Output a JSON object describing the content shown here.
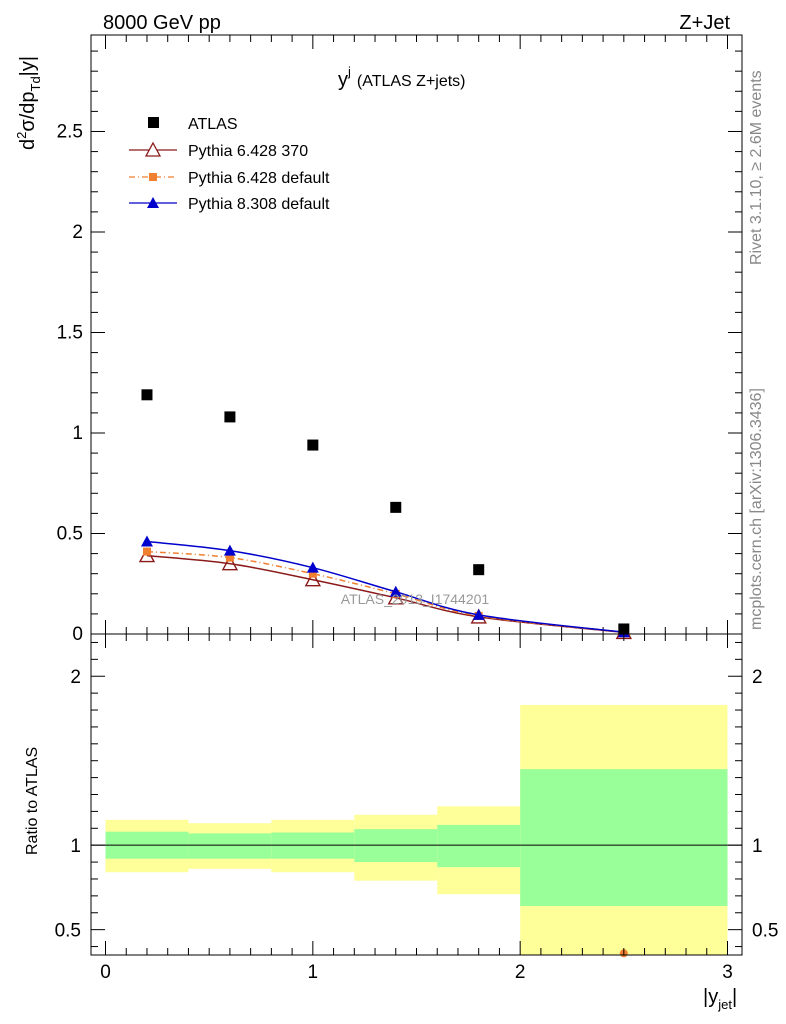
{
  "header": {
    "left_label": "8000 GeV pp",
    "right_label": "Z+Jet"
  },
  "side_labels": {
    "rivet": "Rivet 3.1.10, ≥ 2.6M events",
    "mcplots": "mcplots.cern.ch [arXiv:1306.3436]"
  },
  "chart_data": [
    {
      "panel": "main",
      "type": "line",
      "title": "y^j (ATLAS Z+jets)",
      "title_main": "y",
      "title_sup": "j",
      "title_rest": "(ATLAS Z+jets)",
      "ylabel": "d²σ/dp_Td|y|",
      "watermark": "ATLAS_2013_I1744201",
      "xlim": [
        -0.07,
        3.07
      ],
      "ylim": [
        0,
        2.98
      ],
      "yticks": [
        0,
        0.5,
        1,
        1.5,
        2,
        2.5
      ],
      "ytick_labels": [
        "0",
        "0.5",
        "1",
        "1.5",
        "2",
        "2.5"
      ],
      "x": [
        0.2,
        0.6,
        1.0,
        1.4,
        1.8,
        2.5
      ],
      "series": [
        {
          "name": "ATLAS",
          "style": "data",
          "color": "#000000",
          "values": [
            1.19,
            1.08,
            0.94,
            0.63,
            0.32,
            0.025
          ]
        },
        {
          "name": "Pythia 6.428 370",
          "style": "line-open-triangle",
          "color": "#8b1a1a",
          "values": [
            0.39,
            0.35,
            0.27,
            0.18,
            0.085,
            0.008
          ]
        },
        {
          "name": "Pythia 6.428 default",
          "style": "dashdot-square",
          "color": "#f08030",
          "values": [
            0.41,
            0.38,
            0.3,
            0.2,
            0.09,
            0.009
          ]
        },
        {
          "name": "Pythia 8.308 default",
          "style": "line-filled-triangle",
          "color": "#0000cc",
          "values": [
            0.46,
            0.415,
            0.33,
            0.21,
            0.095,
            0.009
          ]
        }
      ],
      "legend_placement": "top-left"
    },
    {
      "panel": "ratio",
      "type": "area",
      "ylabel": "Ratio to ATLAS",
      "xlabel_main": "|y",
      "xlabel_sub": "jet",
      "xlabel_end": "|",
      "xlim": [
        -0.07,
        3.07
      ],
      "ylim": [
        0.35,
        2.25
      ],
      "xticks": [
        0,
        1,
        2,
        3
      ],
      "xtick_labels": [
        "0",
        "1",
        "2",
        "3"
      ],
      "yticks": [
        0.5,
        1,
        2
      ],
      "ytick_labels": [
        "0.5",
        "1",
        "2"
      ],
      "bins": [
        {
          "x0": 0.0,
          "x1": 0.4,
          "stat_lo": 0.92,
          "stat_hi": 1.08,
          "tot_lo": 0.84,
          "tot_hi": 1.15
        },
        {
          "x0": 0.4,
          "x1": 0.8,
          "stat_lo": 0.92,
          "stat_hi": 1.07,
          "tot_lo": 0.86,
          "tot_hi": 1.13
        },
        {
          "x0": 0.8,
          "x1": 1.2,
          "stat_lo": 0.92,
          "stat_hi": 1.075,
          "tot_lo": 0.84,
          "tot_hi": 1.15
        },
        {
          "x0": 1.2,
          "x1": 1.6,
          "stat_lo": 0.9,
          "stat_hi": 1.095,
          "tot_lo": 0.79,
          "tot_hi": 1.18
        },
        {
          "x0": 1.6,
          "x1": 2.0,
          "stat_lo": 0.87,
          "stat_hi": 1.12,
          "tot_lo": 0.71,
          "tot_hi": 1.23
        },
        {
          "x0": 2.0,
          "x1": 3.0,
          "stat_lo": 0.64,
          "stat_hi": 1.45,
          "tot_lo": 0.35,
          "tot_hi": 1.83
        }
      ],
      "reference_line": 1,
      "outlier_point": {
        "x": 2.5,
        "y": 0.36,
        "color": "#f08030"
      },
      "band_colors": {
        "stat": "#99ff99",
        "total": "#ffff99"
      }
    }
  ]
}
